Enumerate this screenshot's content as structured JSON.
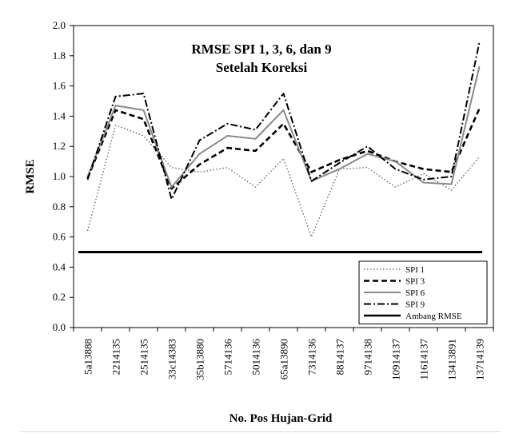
{
  "chart_data": {
    "type": "line",
    "title": "RMSE SPI 1, 3, 6, dan 9",
    "subtitle": "Setelah Koreksi",
    "xlabel": "No. Pos Hujan-Grid",
    "ylabel": "RMSE",
    "ylim": [
      0,
      2.0
    ],
    "yticks": [
      "0.0",
      "0.2",
      "0.4",
      "0.6",
      "0.8",
      "1.0",
      "1.2",
      "1.4",
      "1.6",
      "1.8",
      "2.0"
    ],
    "grid": false,
    "legend": "bottom-right",
    "categories": [
      "5a13888",
      "2214135",
      "2514135",
      "33c14383",
      "35b13880",
      "5714136",
      "5014136",
      "65a13890",
      "7314136",
      "8814137",
      "9714138",
      "10914137",
      "11614137",
      "13413891",
      "13714139"
    ],
    "series": [
      {
        "name": "SPI 1",
        "style": "dotted",
        "color": "#606060",
        "values": [
          0.64,
          1.34,
          1.27,
          1.06,
          1.03,
          1.06,
          0.93,
          1.12,
          0.6,
          1.05,
          1.06,
          0.93,
          1.02,
          0.91,
          1.13
        ]
      },
      {
        "name": "SPI 3",
        "style": "dashed",
        "color": "#000000",
        "values": [
          0.99,
          1.44,
          1.38,
          0.92,
          1.08,
          1.19,
          1.17,
          1.35,
          1.03,
          1.11,
          1.17,
          1.1,
          1.05,
          1.03,
          1.45
        ]
      },
      {
        "name": "SPI 6",
        "style": "solid",
        "color": "#8a8a8a",
        "values": [
          1.0,
          1.47,
          1.44,
          0.93,
          1.15,
          1.27,
          1.25,
          1.44,
          0.97,
          1.05,
          1.15,
          1.1,
          0.96,
          0.95,
          1.73
        ]
      },
      {
        "name": "SPI 9",
        "style": "dashdot",
        "color": "#000000",
        "values": [
          0.98,
          1.53,
          1.55,
          0.85,
          1.24,
          1.35,
          1.31,
          1.55,
          0.97,
          1.09,
          1.2,
          1.05,
          0.98,
          1.0,
          1.89
        ]
      },
      {
        "name": "Ambang RMSE",
        "style": "solid",
        "color": "#000000",
        "values": [
          0.5,
          0.5,
          0.5,
          0.5,
          0.5,
          0.5,
          0.5,
          0.5,
          0.5,
          0.5,
          0.5,
          0.5,
          0.5,
          0.5,
          0.5
        ]
      }
    ]
  }
}
